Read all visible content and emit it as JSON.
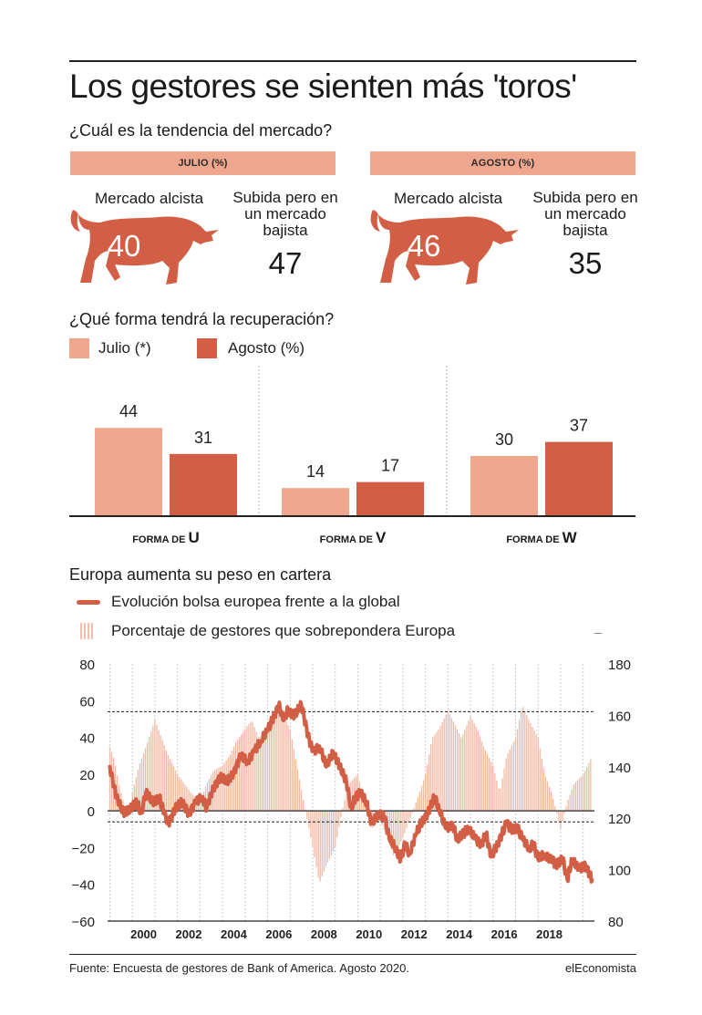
{
  "title": "Los gestores se sienten más 'toros'",
  "section1": {
    "question": "¿Cuál es la tendencia del mercado?",
    "panels": [
      {
        "band": "JULIO (%)",
        "bull_label": "Mercado alcista",
        "bull_value": "40",
        "bear_label_lines": [
          "Subida pero en",
          "un mercado",
          "bajista"
        ],
        "bear_value": "47"
      },
      {
        "band": "AGOSTO (%)",
        "bull_label": "Mercado alcista",
        "bull_value": "46",
        "bear_label_lines": [
          "Subida pero en",
          "un mercado",
          "bajista"
        ],
        "bear_value": "35"
      }
    ]
  },
  "section2": {
    "question": "¿Qué forma tendrá la recuperación?",
    "legend": [
      {
        "label": "Julio (*)",
        "color": "#eea78d"
      },
      {
        "label": "Agosto (%)",
        "color": "#d25f45"
      }
    ]
  },
  "section3": {
    "question": "Europa aumenta su peso en cartera",
    "legend": [
      {
        "label": "Evolución bolsa europea frente a la global",
        "color": "#d25f45"
      },
      {
        "label": "Porcentaje de gestores que sobrepondera Europa",
        "color": "#f4c0ad"
      }
    ]
  },
  "chart_data": [
    {
      "type": "bar",
      "categories_prefix": "FORMA DE",
      "categories": [
        "U",
        "V",
        "W"
      ],
      "series": [
        {
          "name": "Julio (*)",
          "values": [
            44,
            14,
            30
          ],
          "color": "#eea78d"
        },
        {
          "name": "Agosto (%)",
          "values": [
            31,
            17,
            37
          ],
          "color": "#d25f45"
        }
      ],
      "ylim": [
        0,
        50
      ]
    },
    {
      "type": "line",
      "x_ticks": [
        "2000",
        "2002",
        "2004",
        "2006",
        "2008",
        "2010",
        "2012",
        "2014",
        "2016",
        "2018"
      ],
      "xlim": [
        1998.9,
        2020.5
      ],
      "y_left": {
        "ticks": [
          "80",
          "60",
          "40",
          "20",
          "0",
          "−20",
          "−40",
          "−60"
        ],
        "ylim": [
          -60,
          80
        ]
      },
      "y_right": {
        "ticks": [
          "180",
          "160",
          "140",
          "120",
          "100",
          "80"
        ],
        "ylim": [
          80,
          180
        ]
      },
      "reference_lines_left": [
        54,
        -6
      ],
      "bars_series": {
        "name": "Porcentaje de gestores que sobrepondera Europa",
        "axis": "left",
        "points": [
          [
            1999.0,
            35
          ],
          [
            1999.2,
            28
          ],
          [
            1999.4,
            15
          ],
          [
            1999.6,
            5
          ],
          [
            1999.8,
            -5
          ],
          [
            2000.0,
            10
          ],
          [
            2000.3,
            25
          ],
          [
            2000.6,
            35
          ],
          [
            2001.0,
            50
          ],
          [
            2001.3,
            40
          ],
          [
            2001.6,
            30
          ],
          [
            2002.0,
            20
          ],
          [
            2002.3,
            15
          ],
          [
            2002.6,
            10
          ],
          [
            2003.0,
            5
          ],
          [
            2003.3,
            15
          ],
          [
            2003.6,
            22
          ],
          [
            2004.0,
            25
          ],
          [
            2004.3,
            30
          ],
          [
            2004.6,
            38
          ],
          [
            2005.0,
            45
          ],
          [
            2005.3,
            50
          ],
          [
            2005.6,
            40
          ],
          [
            2006.0,
            45
          ],
          [
            2006.3,
            52
          ],
          [
            2006.6,
            55
          ],
          [
            2007.0,
            45
          ],
          [
            2007.3,
            25
          ],
          [
            2007.6,
            5
          ],
          [
            2008.0,
            -20
          ],
          [
            2008.3,
            -40
          ],
          [
            2008.6,
            -30
          ],
          [
            2009.0,
            -20
          ],
          [
            2009.3,
            0
          ],
          [
            2009.6,
            15
          ],
          [
            2010.0,
            20
          ],
          [
            2010.3,
            5
          ],
          [
            2010.6,
            -10
          ],
          [
            2011.0,
            -5
          ],
          [
            2011.3,
            -15
          ],
          [
            2011.6,
            -25
          ],
          [
            2012.0,
            -15
          ],
          [
            2012.3,
            -5
          ],
          [
            2012.6,
            5
          ],
          [
            2013.0,
            20
          ],
          [
            2013.3,
            40
          ],
          [
            2013.6,
            45
          ],
          [
            2014.0,
            55
          ],
          [
            2014.3,
            48
          ],
          [
            2014.6,
            40
          ],
          [
            2015.0,
            52
          ],
          [
            2015.3,
            45
          ],
          [
            2015.6,
            35
          ],
          [
            2016.0,
            25
          ],
          [
            2016.3,
            10
          ],
          [
            2016.6,
            30
          ],
          [
            2017.0,
            40
          ],
          [
            2017.3,
            58
          ],
          [
            2017.6,
            50
          ],
          [
            2018.0,
            40
          ],
          [
            2018.3,
            20
          ],
          [
            2018.6,
            10
          ],
          [
            2019.0,
            -10
          ],
          [
            2019.3,
            5
          ],
          [
            2019.6,
            15
          ],
          [
            2020.0,
            20
          ],
          [
            2020.4,
            30
          ]
        ]
      },
      "line_series": {
        "name": "Evolución bolsa europea frente a la global",
        "axis": "right",
        "points": [
          [
            1999.0,
            140
          ],
          [
            1999.3,
            128
          ],
          [
            1999.6,
            122
          ],
          [
            1999.9,
            124
          ],
          [
            2000.2,
            126
          ],
          [
            2000.4,
            122
          ],
          [
            2000.6,
            130
          ],
          [
            2000.9,
            126
          ],
          [
            2001.2,
            128
          ],
          [
            2001.4,
            122
          ],
          [
            2001.6,
            118
          ],
          [
            2001.9,
            124
          ],
          [
            2002.2,
            126
          ],
          [
            2002.5,
            122
          ],
          [
            2002.8,
            126
          ],
          [
            2003.1,
            128
          ],
          [
            2003.3,
            124
          ],
          [
            2003.6,
            132
          ],
          [
            2003.9,
            136
          ],
          [
            2004.2,
            134
          ],
          [
            2004.5,
            138
          ],
          [
            2004.8,
            144
          ],
          [
            2005.1,
            142
          ],
          [
            2005.4,
            146
          ],
          [
            2005.7,
            150
          ],
          [
            2006.0,
            154
          ],
          [
            2006.2,
            158
          ],
          [
            2006.5,
            164
          ],
          [
            2006.7,
            158
          ],
          [
            2006.9,
            162
          ],
          [
            2007.2,
            160
          ],
          [
            2007.5,
            164
          ],
          [
            2007.8,
            152
          ],
          [
            2008.0,
            146
          ],
          [
            2008.3,
            148
          ],
          [
            2008.6,
            140
          ],
          [
            2008.9,
            146
          ],
          [
            2009.2,
            140
          ],
          [
            2009.5,
            134
          ],
          [
            2009.7,
            124
          ],
          [
            2009.9,
            128
          ],
          [
            2010.1,
            130
          ],
          [
            2010.4,
            126
          ],
          [
            2010.6,
            118
          ],
          [
            2010.9,
            122
          ],
          [
            2011.2,
            120
          ],
          [
            2011.4,
            112
          ],
          [
            2011.7,
            108
          ],
          [
            2011.9,
            104
          ],
          [
            2012.1,
            110
          ],
          [
            2012.3,
            106
          ],
          [
            2012.6,
            114
          ],
          [
            2012.8,
            118
          ],
          [
            2013.1,
            122
          ],
          [
            2013.4,
            128
          ],
          [
            2013.6,
            124
          ],
          [
            2013.9,
            116
          ],
          [
            2014.2,
            118
          ],
          [
            2014.4,
            112
          ],
          [
            2014.7,
            114
          ],
          [
            2014.9,
            116
          ],
          [
            2015.2,
            112
          ],
          [
            2015.5,
            110
          ],
          [
            2015.7,
            114
          ],
          [
            2015.9,
            105
          ],
          [
            2016.1,
            108
          ],
          [
            2016.4,
            114
          ],
          [
            2016.6,
            118
          ],
          [
            2016.8,
            116
          ],
          [
            2017.1,
            116
          ],
          [
            2017.3,
            112
          ],
          [
            2017.6,
            108
          ],
          [
            2017.8,
            110
          ],
          [
            2018.0,
            104
          ],
          [
            2018.3,
            106
          ],
          [
            2018.6,
            104
          ],
          [
            2018.8,
            102
          ],
          [
            2019.1,
            104
          ],
          [
            2019.3,
            96
          ],
          [
            2019.5,
            104
          ],
          [
            2019.8,
            100
          ],
          [
            2020.1,
            102
          ],
          [
            2020.4,
            96
          ]
        ]
      }
    }
  ],
  "footer": {
    "source": "Fuente: Encuesta de gestores de Bank of America. Agosto 2020.",
    "brand": "elEconomista"
  }
}
